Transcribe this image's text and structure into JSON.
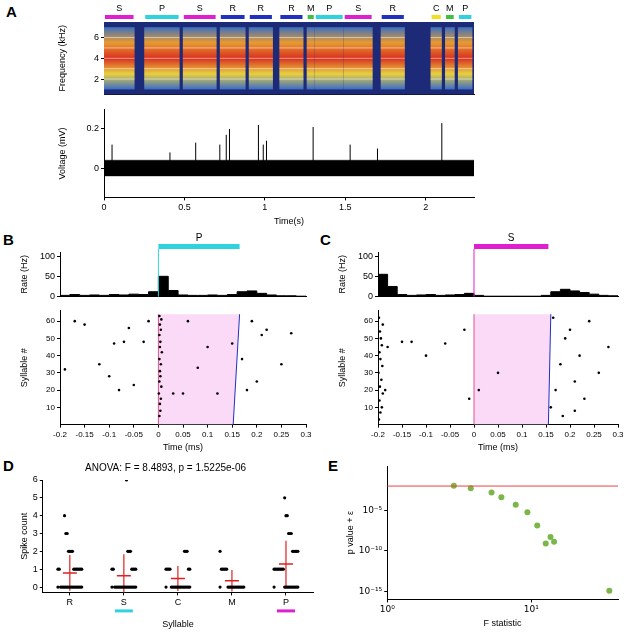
{
  "chart_data": [
    {
      "panel": "A",
      "type": "spectrogram",
      "y_label": "Frequency (kHz)",
      "xlim": [
        0,
        2.3
      ],
      "ylim": [
        0.5,
        7.5
      ],
      "yticks": [
        2,
        4,
        6
      ],
      "tick_labels": "y",
      "frequency_range": [
        1,
        7
      ],
      "syllables": {
        "labels": [
          "S",
          "P",
          "S",
          "R",
          "R",
          "R",
          "M",
          "P",
          "S",
          "R",
          "C",
          "M",
          "P"
        ],
        "start": [
          0.0,
          0.25,
          0.49,
          0.72,
          0.9,
          1.09,
          1.26,
          1.31,
          1.49,
          1.72,
          2.03,
          2.12,
          2.2
        ],
        "end": [
          0.19,
          0.47,
          0.7,
          0.88,
          1.05,
          1.24,
          1.31,
          1.49,
          1.67,
          1.87,
          2.1,
          2.18,
          2.29
        ],
        "colors": [
          "#e020d0",
          "#2fd3e0",
          "#e020d0",
          "#2030c0",
          "#2030c0",
          "#2030c0",
          "#40c040",
          "#2fd3e0",
          "#e020d0",
          "#2030c0",
          "#f0e020",
          "#40c040",
          "#2fd3e0"
        ]
      }
    },
    {
      "type": "line",
      "x_label": "Time(s)",
      "y_label": "Voltage (mV)",
      "xlim": [
        0,
        2.3
      ],
      "xticks": [
        0,
        0.5,
        1,
        1.5,
        2
      ],
      "ylim": [
        -0.15,
        0.3
      ],
      "yticks": [
        0,
        0.2
      ],
      "color": "#000000",
      "noise_band": [
        -0.04,
        0.04
      ],
      "spikes": {
        "x": [
          0.05,
          0.41,
          0.57,
          0.72,
          0.76,
          0.78,
          0.96,
          0.99,
          1.01,
          1.3,
          1.53,
          1.7,
          2.1
        ],
        "values": [
          0.12,
          0.08,
          0.13,
          0.12,
          0.17,
          0.2,
          0.22,
          0.12,
          0.14,
          0.21,
          0.12,
          0.1,
          0.23
        ]
      }
    },
    {
      "panel": "B",
      "type": "histogram",
      "y_label": "Rate (Hz)",
      "syllable": {
        "label": "P",
        "start": 0,
        "end": 0.165,
        "color": "#2fd3e0"
      },
      "xlim": [
        -0.2,
        0.3
      ],
      "ylim": [
        0,
        110
      ],
      "yticks": [
        0,
        50,
        100
      ],
      "tick_labels": "y",
      "color": "#000000",
      "bins": [
        -0.2,
        -0.18,
        -0.16,
        -0.14,
        -0.12,
        -0.1,
        -0.08,
        -0.06,
        -0.04,
        -0.02,
        0,
        0.02,
        0.04,
        0.06,
        0.08,
        0.1,
        0.12,
        0.14,
        0.16,
        0.18,
        0.2,
        0.22,
        0.24,
        0.26,
        0.28,
        0.3
      ],
      "values": [
        3,
        5,
        3,
        4,
        3,
        5,
        4,
        6,
        5,
        12,
        50,
        15,
        4,
        3,
        3,
        4,
        3,
        5,
        12,
        14,
        8,
        4,
        2,
        2,
        1
      ]
    },
    {
      "type": "scatter",
      "x_label": "Time (ms)",
      "y_label": "Syllable #",
      "xlim": [
        -0.2,
        0.3
      ],
      "xticks": [
        -0.2,
        -0.15,
        -0.1,
        -0.05,
        0,
        0.05,
        0.1,
        0.15,
        0.2,
        0.25,
        0.3
      ],
      "ylim": [
        0,
        66
      ],
      "yticks": [
        10,
        20,
        30,
        40,
        50,
        60
      ],
      "color": "#000000",
      "syllable_window": {
        "start": 0,
        "end": [
          0.152,
          0.165
        ],
        "trials": [
          0,
          64
        ]
      },
      "x": [
        0.002,
        0.004,
        0.003,
        0.005,
        0.001,
        0.006,
        0.002,
        0.004,
        0.003,
        0.005,
        0.002,
        0.007,
        0.003,
        0.004,
        0.002,
        0.005,
        0.003,
        0.006,
        0.002,
        -0.19,
        -0.15,
        -0.12,
        -0.1,
        -0.09,
        -0.08,
        -0.07,
        -0.06,
        -0.05,
        -0.03,
        -0.02,
        0.03,
        0.05,
        0.08,
        0.1,
        0.12,
        0.15,
        0.17,
        0.18,
        0.19,
        0.2,
        0.21,
        0.22,
        0.25,
        0.27,
        -0.17,
        0.06
      ],
      "values": [
        5,
        8,
        12,
        15,
        18,
        22,
        25,
        28,
        31,
        35,
        38,
        42,
        45,
        48,
        52,
        55,
        58,
        61,
        63,
        32,
        58,
        35,
        28,
        47,
        20,
        48,
        56,
        23,
        48,
        60,
        18,
        18,
        33,
        45,
        18,
        47,
        38,
        20,
        60,
        25,
        52,
        55,
        35,
        53,
        60,
        60
      ]
    },
    {
      "panel": "C",
      "type": "histogram",
      "y_label": "Rate (Hz)",
      "syllable": {
        "label": "S",
        "start": 0,
        "end": 0.155,
        "color": "#e020d0"
      },
      "xlim": [
        -0.2,
        0.3
      ],
      "ylim": [
        0,
        110
      ],
      "yticks": [
        0,
        50,
        100
      ],
      "tick_labels": "y",
      "color": "#000000",
      "bins": [
        -0.2,
        -0.18,
        -0.16,
        -0.14,
        -0.12,
        -0.1,
        -0.08,
        -0.06,
        -0.04,
        -0.02,
        0,
        0.02,
        0.04,
        0.06,
        0.08,
        0.1,
        0.12,
        0.14,
        0.16,
        0.18,
        0.2,
        0.22,
        0.24,
        0.26,
        0.28,
        0.3
      ],
      "values": [
        55,
        25,
        5,
        3,
        4,
        5,
        3,
        4,
        5,
        8,
        3,
        1,
        1,
        1,
        1,
        1,
        1,
        3,
        12,
        18,
        14,
        10,
        6,
        3,
        2
      ]
    },
    {
      "type": "scatter",
      "x_label": "Time (ms)",
      "y_label": "Syllable #",
      "xlim": [
        -0.2,
        0.3
      ],
      "xticks": [
        -0.2,
        -0.15,
        -0.1,
        -0.05,
        0,
        0.05,
        0.1,
        0.15,
        0.2,
        0.25,
        0.3
      ],
      "ylim": [
        0,
        66
      ],
      "yticks": [
        10,
        20,
        30,
        40,
        50,
        60
      ],
      "color": "#000000",
      "syllable_window": {
        "start": 0,
        "end": [
          0.155,
          0.16
        ],
        "trials": [
          0,
          64
        ]
      },
      "x": [
        -0.198,
        -0.195,
        -0.192,
        -0.197,
        -0.19,
        -0.196,
        -0.193,
        -0.199,
        -0.191,
        -0.195,
        -0.197,
        -0.192,
        -0.194,
        -0.196,
        -0.19,
        -0.198,
        -0.185,
        -0.18,
        -0.15,
        -0.13,
        -0.1,
        -0.06,
        -0.02,
        -0.01,
        0.01,
        0.05,
        0.16,
        0.17,
        0.18,
        0.19,
        0.2,
        0.21,
        0.22,
        0.23,
        0.24,
        0.26,
        0.28,
        0.165,
        0.185,
        0.21
      ],
      "values": [
        3,
        7,
        10,
        14,
        18,
        22,
        26,
        30,
        34,
        38,
        42,
        46,
        50,
        54,
        58,
        62,
        20,
        45,
        48,
        48,
        40,
        47,
        55,
        15,
        20,
        30,
        10,
        20,
        35,
        50,
        55,
        25,
        40,
        15,
        60,
        30,
        45,
        62,
        5,
        8
      ]
    },
    {
      "panel": "D",
      "type": "strip",
      "title": "ANOVA: F = 8.4893, p = 1.5225e-06",
      "x_label": "Syllable",
      "y_label": "Spike count",
      "categories": [
        "R",
        "S",
        "C",
        "M",
        "P"
      ],
      "underline_colors": [
        null,
        "#2fd3e0",
        null,
        null,
        "#e020d0"
      ],
      "ylim": [
        -0.3,
        6
      ],
      "yticks": [
        0,
        1,
        2,
        3,
        4,
        5,
        6
      ],
      "color": "#000000",
      "values": [
        [
          0,
          0,
          0,
          0,
          0,
          0,
          0,
          0,
          0,
          0,
          0,
          0,
          0,
          0,
          0,
          0,
          0,
          0,
          1,
          1,
          1,
          1,
          1,
          1,
          1,
          1,
          1,
          2,
          2,
          2,
          2,
          3,
          3,
          4
        ],
        [
          0,
          0,
          0,
          0,
          0,
          0,
          0,
          0,
          0,
          0,
          0,
          0,
          0,
          0,
          0,
          0,
          0,
          0,
          1,
          1,
          1,
          1,
          1,
          1,
          2,
          2,
          2,
          6
        ],
        [
          0,
          0,
          0,
          0,
          0,
          0,
          0,
          0,
          0,
          0,
          0,
          0,
          0,
          0,
          0,
          0,
          1,
          1,
          1,
          1,
          1,
          1,
          2,
          2,
          2
        ],
        [
          0,
          0,
          0,
          0,
          0,
          0,
          0,
          0,
          0,
          0,
          0,
          0,
          0,
          0,
          1,
          1,
          1,
          1,
          1,
          2
        ],
        [
          0,
          0,
          0,
          0,
          0,
          0,
          0,
          0,
          0,
          0,
          0,
          0,
          1,
          1,
          1,
          1,
          1,
          1,
          1,
          1,
          2,
          2,
          2,
          2,
          2,
          3,
          3,
          3,
          4,
          4,
          5
        ]
      ],
      "means": [
        0.79,
        0.64,
        0.48,
        0.35,
        1.29
      ],
      "sd": [
        1.0,
        1.2,
        0.7,
        0.6,
        1.3
      ]
    },
    {
      "panel": "E",
      "type": "scatter",
      "log": true,
      "x_label": "F statistic",
      "y_label": "p value + ε",
      "xlim": [
        1,
        40
      ],
      "xticks": [
        {
          "value": 1,
          "label": "10⁰"
        },
        {
          "value": 10,
          "label": "10¹"
        }
      ],
      "ylim": [
        1e-16,
        3
      ],
      "yticks": [
        {
          "value": 1e-15,
          "label": "10⁻¹⁵"
        },
        {
          "value": 1e-10,
          "label": "10⁻¹⁰"
        },
        {
          "value": 1e-05,
          "label": "10⁻⁵"
        }
      ],
      "color": "#7ab648",
      "marker": "circle",
      "reference_line": 0.01,
      "x": [
        2.9,
        3.8,
        5.3,
        6.2,
        7.8,
        9.4,
        11,
        13.6,
        14.4,
        12.6,
        34.8
      ],
      "values": [
        0.011,
        0.0055,
        0.0016,
        0.0004,
        5e-05,
        6e-06,
        1.3e-07,
        5e-09,
        1.3e-09,
        8e-10,
        1.2e-15
      ]
    }
  ]
}
